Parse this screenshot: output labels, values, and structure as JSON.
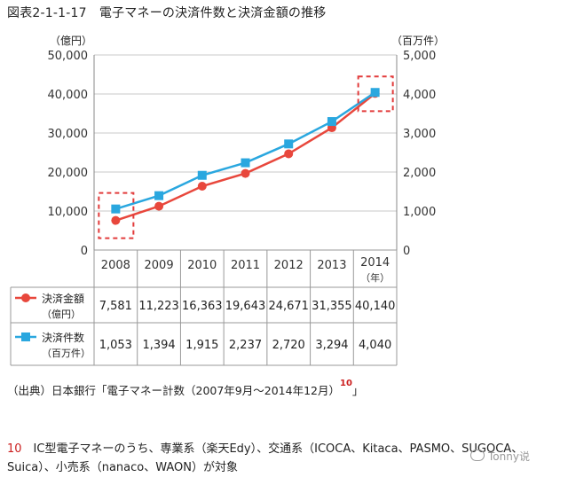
{
  "figure": {
    "title": "図表2-1-1-17　電子マネーの決済件数と決済金額の推移",
    "left_unit": "（億円）",
    "right_unit": "（百万件）",
    "source": "（出典）日本銀行「電子マネー計数（2007年9月〜2014年12月）",
    "source_ref": "10",
    "source_close": "」"
  },
  "footnote": {
    "number": "10",
    "text": "　IC型電子マネーのうち、専業系（楽天Edy）、交通系（ICOCA、Kitaca、PASMO、SUGOCA、Suica）、小売系（nanaco、WAON）が対象"
  },
  "watermark": {
    "text": "Tonny说",
    "icon": "wechat-icon"
  },
  "chart_data": {
    "type": "line",
    "categories": [
      "2008",
      "2009",
      "2010",
      "2011",
      "2012",
      "2013",
      "2014"
    ],
    "category_unit": "（年）",
    "left_axis": {
      "ylim": [
        0,
        50000
      ],
      "ticks": [
        "0",
        "10,000",
        "20,000",
        "30,000",
        "40,000",
        "50,000"
      ]
    },
    "right_axis": {
      "ylim": [
        0,
        5000
      ],
      "ticks": [
        "0",
        "1,000",
        "2,000",
        "3,000",
        "4,000",
        "5,000"
      ]
    },
    "grid": true,
    "series": [
      {
        "name": "決済金額",
        "unit": "（億円）",
        "axis": "left",
        "marker": "circle",
        "color": "#e8473c",
        "values": [
          7581,
          11223,
          16363,
          19643,
          24671,
          31355,
          40140
        ],
        "labels": [
          "7,581",
          "11,223",
          "16,363",
          "19,643",
          "24,671",
          "31,355",
          "40,140"
        ]
      },
      {
        "name": "決済件数",
        "unit": "（百万件）",
        "axis": "right",
        "marker": "square",
        "color": "#2aa7df",
        "values": [
          1053,
          1394,
          1915,
          2237,
          2720,
          3294,
          4040
        ],
        "labels": [
          "1,053",
          "1,394",
          "1,915",
          "2,237",
          "2,720",
          "3,294",
          "4,040"
        ]
      }
    ],
    "highlights": [
      "2008",
      "2014"
    ],
    "highlight_color": "#e23b3b"
  }
}
